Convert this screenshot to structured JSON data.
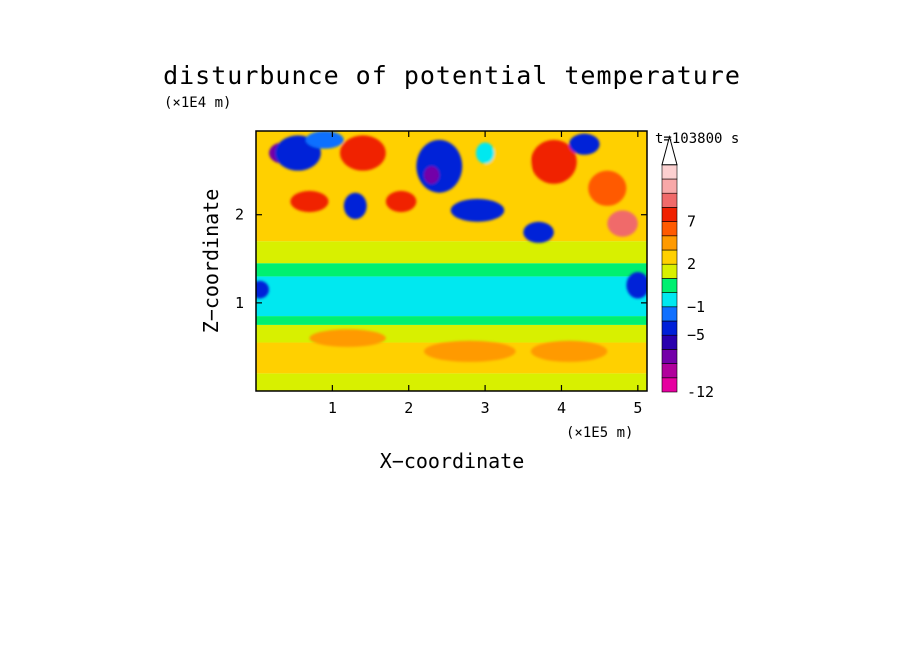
{
  "chart_data": {
    "type": "heatmap",
    "title": "disturbunce of potential temperature",
    "xlabel": "X−coordinate",
    "ylabel": "Z−coordinate",
    "x_unit": "(×1E5 m)",
    "y_unit": "(×1E4 m)",
    "time_label": "t=103800 s",
    "xlim": [
      0,
      5.12
    ],
    "ylim": [
      0,
      2.95
    ],
    "x_ticks": [
      1,
      2,
      3,
      4,
      5
    ],
    "y_ticks": [
      1,
      2
    ],
    "x_tick_labels": [
      "1",
      "2",
      "3",
      "4",
      "5"
    ],
    "y_tick_labels": [
      "1",
      "2"
    ],
    "colorbar": {
      "colors": [
        "#e600a0",
        "#b0009c",
        "#7300a8",
        "#2a00ae",
        "#0020d8",
        "#1070ff",
        "#00e8f0",
        "#00f070",
        "#d8f000",
        "#ffd000",
        "#ff9a00",
        "#ff5a00",
        "#f02000",
        "#f06a6a",
        "#f8a8a8",
        "#fcd0d0"
      ],
      "extend_top": true,
      "tick_labels": [
        "-12",
        "−5",
        "−1",
        "2",
        "7"
      ],
      "tick_levels": [
        0,
        4,
        6,
        9,
        12
      ]
    },
    "bands": [
      {
        "zmin": 0.0,
        "zmax": 0.2,
        "level": 8
      },
      {
        "zmin": 0.2,
        "zmax": 0.55,
        "level": 9
      },
      {
        "zmin": 0.55,
        "zmax": 0.75,
        "level": 8
      },
      {
        "zmin": 0.75,
        "zmax": 0.85,
        "level": 7
      },
      {
        "zmin": 0.85,
        "zmax": 1.3,
        "level": 6
      },
      {
        "zmin": 1.3,
        "zmax": 1.45,
        "level": 7
      },
      {
        "zmin": 1.45,
        "zmax": 1.7,
        "level": 8
      },
      {
        "zmin": 1.7,
        "zmax": 2.95,
        "level": 9
      }
    ],
    "blobs": [
      {
        "x": 0.35,
        "z": 2.7,
        "rx": 0.18,
        "rz": 0.12,
        "level": 2
      },
      {
        "x": 0.55,
        "z": 2.7,
        "rx": 0.3,
        "rz": 0.2,
        "level": 4
      },
      {
        "x": 0.9,
        "z": 2.85,
        "rx": 0.25,
        "rz": 0.1,
        "level": 5
      },
      {
        "x": 0.7,
        "z": 2.15,
        "rx": 0.25,
        "rz": 0.12,
        "level": 12
      },
      {
        "x": 1.4,
        "z": 2.7,
        "rx": 0.3,
        "rz": 0.2,
        "level": 12
      },
      {
        "x": 1.3,
        "z": 2.1,
        "rx": 0.15,
        "rz": 0.15,
        "level": 4
      },
      {
        "x": 1.9,
        "z": 2.15,
        "rx": 0.2,
        "rz": 0.12,
        "level": 12
      },
      {
        "x": 2.4,
        "z": 2.55,
        "rx": 0.3,
        "rz": 0.3,
        "level": 4
      },
      {
        "x": 2.3,
        "z": 2.45,
        "rx": 0.1,
        "rz": 0.1,
        "level": 2
      },
      {
        "x": 2.9,
        "z": 2.05,
        "rx": 0.35,
        "rz": 0.13,
        "level": 4
      },
      {
        "x": 3.3,
        "z": 2.55,
        "rx": 0.3,
        "rz": 0.25,
        "level": 9
      },
      {
        "x": 3.0,
        "z": 2.7,
        "rx": 0.12,
        "rz": 0.12,
        "level": 6
      },
      {
        "x": 3.9,
        "z": 2.6,
        "rx": 0.3,
        "rz": 0.25,
        "level": 12
      },
      {
        "x": 3.7,
        "z": 1.8,
        "rx": 0.2,
        "rz": 0.12,
        "level": 4
      },
      {
        "x": 4.3,
        "z": 2.8,
        "rx": 0.2,
        "rz": 0.12,
        "level": 4
      },
      {
        "x": 4.6,
        "z": 2.3,
        "rx": 0.25,
        "rz": 0.2,
        "level": 11
      },
      {
        "x": 4.8,
        "z": 1.9,
        "rx": 0.2,
        "rz": 0.15,
        "level": 13
      },
      {
        "x": 5.0,
        "z": 1.2,
        "rx": 0.15,
        "rz": 0.15,
        "level": 4
      },
      {
        "x": 0.05,
        "z": 1.15,
        "rx": 0.12,
        "rz": 0.1,
        "level": 4
      },
      {
        "x": 2.8,
        "z": 0.45,
        "rx": 0.6,
        "rz": 0.12,
        "level": 10
      },
      {
        "x": 1.2,
        "z": 0.6,
        "rx": 0.5,
        "rz": 0.1,
        "level": 10
      },
      {
        "x": 4.1,
        "z": 0.45,
        "rx": 0.5,
        "rz": 0.12,
        "level": 10
      }
    ]
  }
}
